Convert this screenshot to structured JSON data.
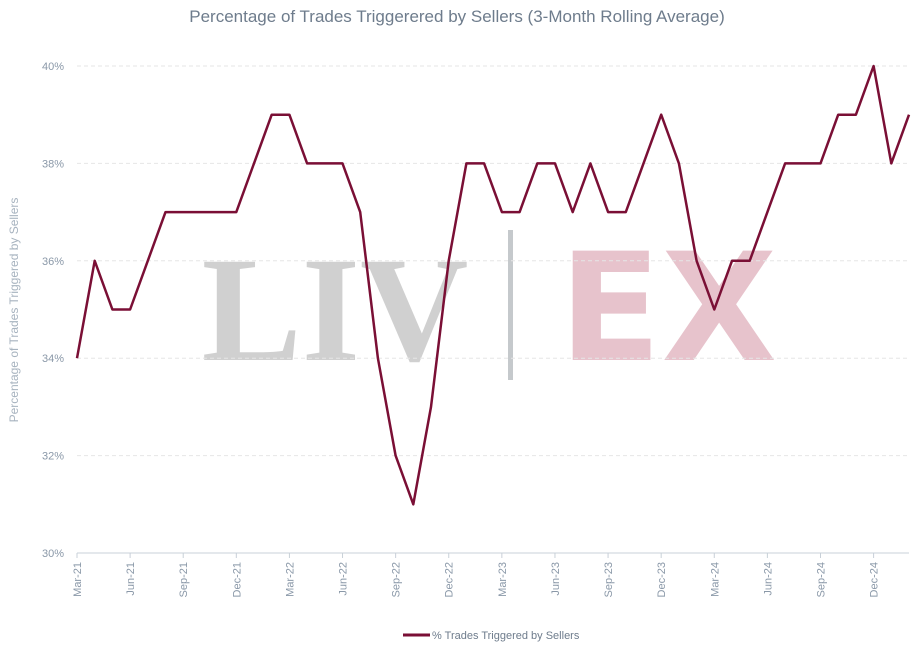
{
  "chart_data": {
    "type": "line",
    "title": "Percentage of Trades Triggerered by Sellers (3-Month Rolling Average)",
    "xlabel": "",
    "ylabel": "Percentage of Trades Triggered by Sellers",
    "ylim": [
      30,
      40
    ],
    "y_ticks": [
      "30%",
      "32%",
      "34%",
      "36%",
      "38%",
      "40%"
    ],
    "y_tick_values": [
      30,
      32,
      34,
      36,
      38,
      40
    ],
    "x_tick_labels": [
      "Mar-21",
      "Jun-21",
      "Sep-21",
      "Dec-21",
      "Mar-22",
      "Jun-22",
      "Sep-22",
      "Dec-22",
      "Mar-23",
      "Jun-23",
      "Sep-23",
      "Dec-23",
      "Mar-24",
      "Jun-24",
      "Sep-24",
      "Dec-24"
    ],
    "grid": true,
    "legend_position": "bottom",
    "watermark_text": "LIV|EX",
    "series": [
      {
        "name": "% Trades Triggered by Sellers",
        "color": "#7a0f35",
        "x": [
          "Mar-21",
          "Apr-21",
          "May-21",
          "Jun-21",
          "Jul-21",
          "Aug-21",
          "Sep-21",
          "Oct-21",
          "Nov-21",
          "Dec-21",
          "Jan-22",
          "Feb-22",
          "Mar-22",
          "Apr-22",
          "May-22",
          "Jun-22",
          "Jul-22",
          "Aug-22",
          "Sep-22",
          "Oct-22",
          "Nov-22",
          "Dec-22",
          "Jan-23",
          "Feb-23",
          "Mar-23",
          "Apr-23",
          "May-23",
          "Jun-23",
          "Jul-23",
          "Aug-23",
          "Sep-23",
          "Oct-23",
          "Nov-23",
          "Dec-23",
          "Jan-24",
          "Feb-24",
          "Mar-24",
          "Apr-24",
          "May-24",
          "Jun-24",
          "Jul-24",
          "Aug-24",
          "Sep-24",
          "Oct-24",
          "Nov-24",
          "Dec-24",
          "Jan-25",
          "Feb-25"
        ],
        "values": [
          34,
          36,
          35,
          35,
          36,
          37,
          37,
          37,
          37,
          37,
          38,
          39,
          39,
          38,
          38,
          38,
          37,
          34,
          32,
          31,
          33,
          36,
          38,
          38,
          37,
          37,
          38,
          38,
          37,
          38,
          37,
          37,
          38,
          39,
          38,
          36,
          35,
          36,
          36,
          37,
          38,
          38,
          38,
          39,
          39,
          40,
          38,
          39
        ]
      }
    ]
  }
}
